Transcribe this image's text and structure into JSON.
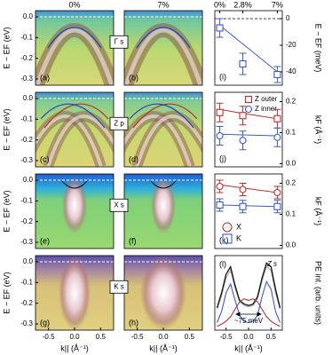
{
  "column_labels": [
    "0%",
    "7%"
  ],
  "row_labels": [
    "Γ s",
    "Z p",
    "X s",
    "K s"
  ],
  "chart_data": [
    {
      "type": "image",
      "label": "(a)",
      "ylabel": "E − EF (eV)",
      "ylim": [
        -0.33,
        0.03
      ],
      "yticks": [
        {
          "value": 0,
          "label": "0.0"
        },
        -0.1,
        -0.2,
        -0.3
      ]
    },
    {
      "type": "image",
      "label": "(b)"
    },
    {
      "type": "image",
      "label": "(c)",
      "ylabel": "E − EF (eV)",
      "ylim": [
        -0.33,
        0.03
      ],
      "yticks": [
        {
          "value": 0,
          "label": "0.0"
        },
        -0.1,
        -0.2,
        -0.3
      ]
    },
    {
      "type": "image",
      "label": "(d)"
    },
    {
      "type": "image",
      "label": "(e)",
      "ylabel": "E − EF (eV)",
      "ylim": [
        -0.33,
        0.03
      ],
      "yticks": [
        {
          "value": 0,
          "label": "0.0"
        },
        -0.1,
        -0.2,
        -0.3
      ]
    },
    {
      "type": "image",
      "label": "(f)"
    },
    {
      "type": "image",
      "label": "(g)",
      "ylabel": "E − EF (eV)",
      "ylim": [
        -0.33,
        0.03
      ],
      "yticks": [
        {
          "value": 0,
          "label": "0.0"
        },
        -0.1,
        -0.2,
        -0.3
      ],
      "xlabel": "k|| (Å⁻¹)",
      "xlim": [
        -0.75,
        0.75
      ],
      "xticks": [
        -0.5,
        {
          "value": 0,
          "label": "0.0"
        },
        0.5
      ]
    },
    {
      "type": "image",
      "label": "(h)",
      "xlabel": "k|| (Å⁻¹)",
      "xlim": [
        -0.75,
        0.75
      ],
      "xticks": [
        -0.5,
        {
          "value": 0,
          "label": "0.0"
        },
        0.5
      ]
    },
    {
      "type": "scatter",
      "label": "(i)",
      "ylabel": "E − EF (meV)",
      "x": [
        0,
        2.8,
        7
      ],
      "xlim": [
        -0.6,
        7.6
      ],
      "xticks": [
        {
          "value": 0,
          "label": "0%"
        },
        {
          "value": 2.8,
          "label": "2.8%"
        },
        {
          "value": 7,
          "label": "7%"
        }
      ],
      "ylim": [
        -50,
        6
      ],
      "yticks": [
        0,
        -20,
        -40
      ],
      "series": [
        {
          "color": "#3a5bd0",
          "marker": "square",
          "values": [
            -7,
            -34,
            -42
          ],
          "errors": [
            7,
            8,
            6
          ],
          "fit_values": [
            -5,
            -19,
            -40
          ]
        }
      ]
    },
    {
      "type": "scatter",
      "label": "(j)",
      "ylabel": "kF (Å⁻¹)",
      "x": [
        0,
        2.8,
        7
      ],
      "xlim": [
        -0.6,
        7.6
      ],
      "ylim": [
        -0.01,
        0.23
      ],
      "yticks": [
        {
          "value": 0,
          "label": "0.0"
        },
        0.1,
        0.2
      ],
      "legend": "upper right",
      "series": [
        {
          "name": "Z outer",
          "color": "#c0302a",
          "marker": "square",
          "values": [
            0.165,
            0.155,
            0.145
          ],
          "errors": [
            0.03,
            0.03,
            0.03
          ],
          "fit_values": [
            0.175,
            0.162,
            0.145
          ]
        },
        {
          "name": "Z inner",
          "color": "#3a5bd0",
          "marker": "circle",
          "values": [
            0.09,
            0.075,
            0.085
          ],
          "errors": [
            0.03,
            0.03,
            0.03
          ],
          "fit_values": [
            0.095,
            0.093,
            0.09
          ]
        }
      ]
    },
    {
      "type": "scatter",
      "label": "(k)",
      "ylabel": "kF (Å⁻¹)",
      "x": [
        0,
        2.8,
        7
      ],
      "xlim": [
        -0.6,
        7.6
      ],
      "ylim": [
        -0.01,
        0.23
      ],
      "yticks": [
        {
          "value": 0,
          "label": "0.0"
        },
        0.1,
        0.2
      ],
      "legend": "lower left",
      "series": [
        {
          "name": "X",
          "color": "#c0302a",
          "marker": "circle",
          "values": [
            0.19,
            0.18,
            0.17
          ],
          "errors": [
            0.02,
            0.02,
            0.02
          ],
          "fit_values": [
            0.195,
            0.185,
            0.17
          ]
        },
        {
          "name": "K",
          "color": "#3a5bd0",
          "marker": "square",
          "values": [
            0.13,
            0.125,
            0.125
          ],
          "errors": [
            0.02,
            0.02,
            0.02
          ],
          "fit_values": [
            0.13,
            0.128,
            0.125
          ]
        }
      ]
    },
    {
      "type": "line",
      "label": "(l)",
      "ylabel": "PE int. (arb. units)",
      "annotation": "Z s",
      "gap_label": "~75 meV",
      "xlabel": "k|| (Å⁻¹)",
      "xlim": [
        -0.75,
        0.75
      ],
      "xticks": [
        -0.5,
        {
          "value": 0,
          "label": "0.0"
        },
        0.5
      ],
      "ylim": [
        0,
        1
      ],
      "x": [
        -0.7,
        -0.6,
        -0.5,
        -0.4,
        -0.3,
        -0.2,
        -0.1,
        0,
        0.1,
        0.2,
        0.3,
        0.4,
        0.5,
        0.6,
        0.7
      ],
      "series": [
        {
          "color": "#aaaaaa",
          "values": [
            0.28,
            0.46,
            0.7,
            0.8,
            0.56,
            0.38,
            0.33,
            0.31,
            0.33,
            0.42,
            0.66,
            0.85,
            0.8,
            0.5,
            0.28
          ]
        },
        {
          "color": "#111111",
          "values": [
            0.3,
            0.5,
            0.75,
            0.85,
            0.6,
            0.4,
            0.35,
            0.33,
            0.35,
            0.45,
            0.7,
            0.9,
            0.85,
            0.55,
            0.3
          ]
        },
        {
          "color": "#c0302a",
          "values": [
            0.05,
            0.08,
            0.12,
            0.18,
            0.28,
            0.38,
            0.42,
            0.4,
            0.42,
            0.38,
            0.28,
            0.18,
            0.12,
            0.08,
            0.05
          ]
        },
        {
          "color": "#3a5bd0",
          "values": [
            0.1,
            0.25,
            0.5,
            0.62,
            0.4,
            0.2,
            0.12,
            0.1,
            0.12,
            0.2,
            0.45,
            0.65,
            0.55,
            0.25,
            0.1
          ]
        }
      ]
    }
  ]
}
